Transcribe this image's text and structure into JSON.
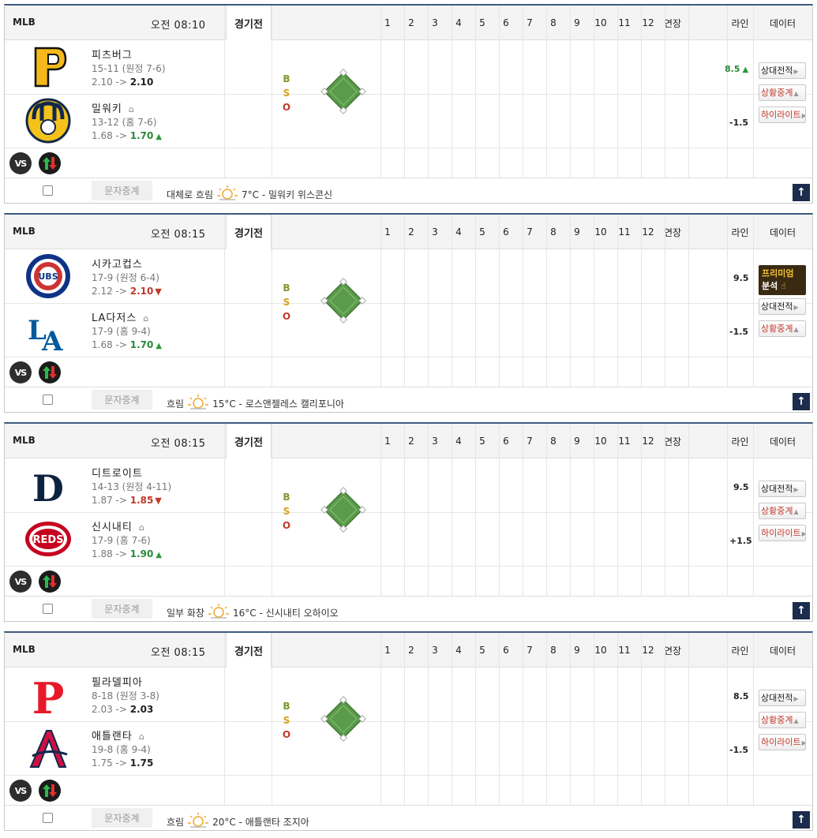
{
  "innings": [
    "1",
    "2",
    "3",
    "4",
    "5",
    "6",
    "7",
    "8",
    "9",
    "10",
    "11",
    "12",
    "연장"
  ],
  "col_line": "라인",
  "col_data": "데이터",
  "bso": {
    "b": "B",
    "s": "S",
    "o": "O"
  },
  "vs_label": "VS",
  "text_relay": "문자중계",
  "games": [
    {
      "league": "MLB",
      "time": "오전 08:10",
      "status": "경기전",
      "away": {
        "name": "피츠버그",
        "record": "15-11 (원정 7-6)",
        "odds_from": "2.10 ->",
        "odds_to": "2.10",
        "trend": "none",
        "logo": "pirates-logo"
      },
      "home": {
        "name": "밀워키",
        "record": "13-12 (홈 7-6)",
        "odds_from": "1.68 ->",
        "odds_to": "1.70",
        "trend": "up",
        "logo": "brewers-logo"
      },
      "line_top": "8.5",
      "line_top_trend": "up",
      "line_bottom": "-1.5",
      "buttons": [
        "상대전적",
        "상황중계",
        "하이라이트"
      ],
      "weather": "대체로 흐림",
      "temp": "7°C - 밀워키 위스콘신"
    },
    {
      "league": "MLB",
      "time": "오전 08:15",
      "status": "경기전",
      "away": {
        "name": "시카고컵스",
        "record": "17-9 (원정 6-4)",
        "odds_from": "2.12 ->",
        "odds_to": "2.10",
        "trend": "down",
        "logo": "cubs-logo"
      },
      "home": {
        "name": "LA다저스",
        "record": "17-9 (홈 9-4)",
        "odds_from": "1.68 ->",
        "odds_to": "1.70",
        "trend": "up",
        "logo": "dodgers-logo"
      },
      "line_top": "9.5",
      "line_top_trend": "none",
      "line_bottom": "-1.5",
      "premium": {
        "line1": "프리미엄",
        "line2": "분석"
      },
      "buttons": [
        "상대전적",
        "상황중계"
      ],
      "weather": "흐림",
      "temp": "15°C - 로스앤젤레스 캘리포니아"
    },
    {
      "league": "MLB",
      "time": "오전 08:15",
      "status": "경기전",
      "away": {
        "name": "디트로이트",
        "record": "14-13 (원정 4-11)",
        "odds_from": "1.87 ->",
        "odds_to": "1.85",
        "trend": "down",
        "logo": "tigers-logo"
      },
      "home": {
        "name": "신시내티",
        "record": "17-9 (홈 7-6)",
        "odds_from": "1.88 ->",
        "odds_to": "1.90",
        "trend": "up",
        "logo": "reds-logo"
      },
      "line_top": "9.5",
      "line_top_trend": "none",
      "line_bottom": "+1.5",
      "buttons": [
        "상대전적",
        "상황중계",
        "하이라이트"
      ],
      "weather": "일부 화창",
      "temp": "16°C - 신시내티 오하이오"
    },
    {
      "league": "MLB",
      "time": "오전 08:15",
      "status": "경기전",
      "away": {
        "name": "필라델피아",
        "record": "8-18 (원정 3-8)",
        "odds_from": "2.03 ->",
        "odds_to": "2.03",
        "trend": "none",
        "logo": "phillies-logo"
      },
      "home": {
        "name": "애틀랜타",
        "record": "19-8 (홈 9-4)",
        "odds_from": "1.75 ->",
        "odds_to": "1.75",
        "trend": "none",
        "logo": "braves-logo"
      },
      "line_top": "8.5",
      "line_top_trend": "none",
      "line_bottom": "-1.5",
      "buttons": [
        "상대전적",
        "상황중계",
        "하이라이트"
      ],
      "weather": "흐림",
      "temp": "20°C - 애틀랜타 조지아"
    }
  ]
}
